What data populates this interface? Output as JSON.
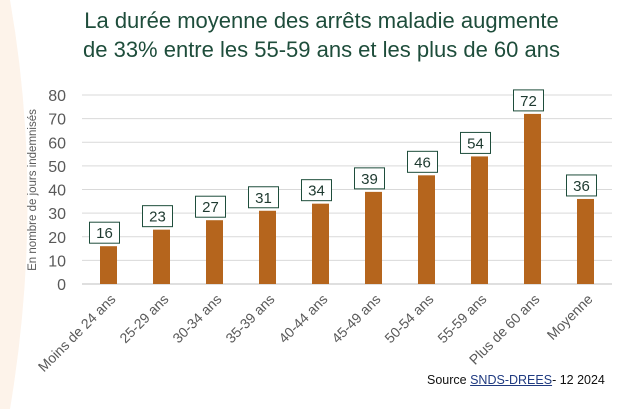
{
  "title_line1": "La durée moyenne des arrêts maladie augmente",
  "title_line2": "de 33% entre les 55-59 ans et les plus de 60 ans",
  "source": {
    "prefix": "Source ",
    "link": "SNDS-DREES",
    "suffix": "- 12 2024"
  },
  "colors": {
    "bar": "#b5651d",
    "title": "#1e4d3b",
    "grid": "#d9d9d9"
  },
  "chart_data": {
    "type": "bar",
    "title": "La durée moyenne des arrêts maladie augmente de 33% entre les 55-59 ans et les plus de 60 ans",
    "ylabel": "En nombre de jours  indemnisés",
    "xlabel": "",
    "categories": [
      "Moins de 24 ans",
      "25-29 ans",
      "30-34 ans",
      "35-39 ans",
      "40-44 ans",
      "45-49 ans",
      "50-54 ans",
      "55-59 ans",
      "Plus de 60 ans",
      "Moyenne"
    ],
    "values": [
      16,
      23,
      27,
      31,
      34,
      39,
      46,
      54,
      72,
      36
    ],
    "ylim": [
      0,
      80
    ],
    "yticks": [
      0,
      10,
      20,
      30,
      40,
      50,
      60,
      70,
      80
    ],
    "grid": true,
    "legend": "none"
  }
}
